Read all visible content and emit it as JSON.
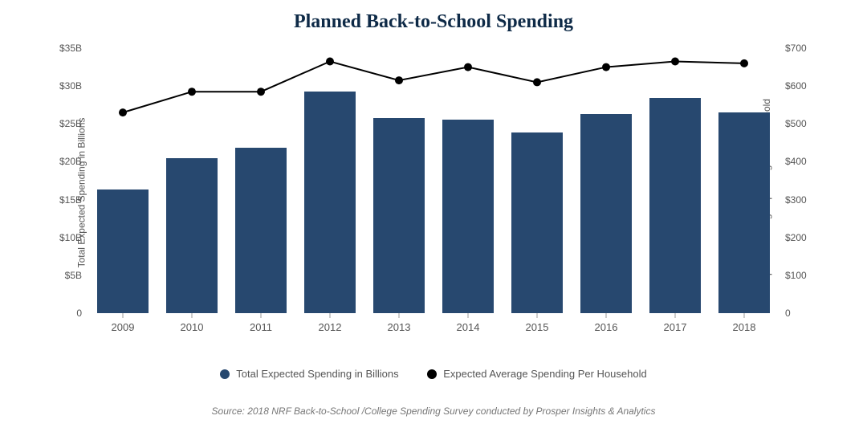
{
  "title": "Planned Back-to-School Spending",
  "source": "Source: 2018 NRF Back-to-School /College Spending Survey conducted by Prosper Insights & Analytics",
  "chart": {
    "type": "bar+line",
    "categories": [
      "2009",
      "2010",
      "2011",
      "2012",
      "2013",
      "2014",
      "2015",
      "2016",
      "2017",
      "2018"
    ],
    "bars": {
      "label": "Total Expected Spending in Billions",
      "values": [
        16.3,
        20.5,
        21.8,
        29.3,
        25.8,
        25.6,
        23.9,
        26.3,
        28.4,
        26.5
      ],
      "color": "#27486f",
      "width_fraction": 0.75
    },
    "line": {
      "label": "Expected Average Spending Per Household",
      "values": [
        530,
        585,
        585,
        665,
        615,
        650,
        610,
        650,
        665,
        660
      ],
      "color": "#000000",
      "marker": "circle",
      "marker_size": 5,
      "line_width": 2
    },
    "left_axis": {
      "label": "Total Expected Spending in Billions",
      "lim": [
        0,
        35
      ],
      "ticks": [
        {
          "v": 0,
          "label": "0"
        },
        {
          "v": 5,
          "label": "$5B"
        },
        {
          "v": 10,
          "label": "$10B"
        },
        {
          "v": 15,
          "label": "$15B"
        },
        {
          "v": 20,
          "label": "$20B"
        },
        {
          "v": 25,
          "label": "$25B"
        },
        {
          "v": 30,
          "label": "$30B"
        },
        {
          "v": 35,
          "label": "$35B"
        }
      ]
    },
    "right_axis": {
      "label": "Expected Average Spending Per Household",
      "lim": [
        0,
        700
      ],
      "ticks": [
        {
          "v": 0,
          "label": "0"
        },
        {
          "v": 100,
          "label": "$100"
        },
        {
          "v": 200,
          "label": "$200"
        },
        {
          "v": 300,
          "label": "$300"
        },
        {
          "v": 400,
          "label": "$400"
        },
        {
          "v": 500,
          "label": "$500"
        },
        {
          "v": 600,
          "label": "$600"
        },
        {
          "v": 700,
          "label": "$700"
        }
      ]
    },
    "background_color": "#ffffff",
    "title_fontsize": 24,
    "axis_fontsize": 12,
    "tick_fontsize": 12
  }
}
